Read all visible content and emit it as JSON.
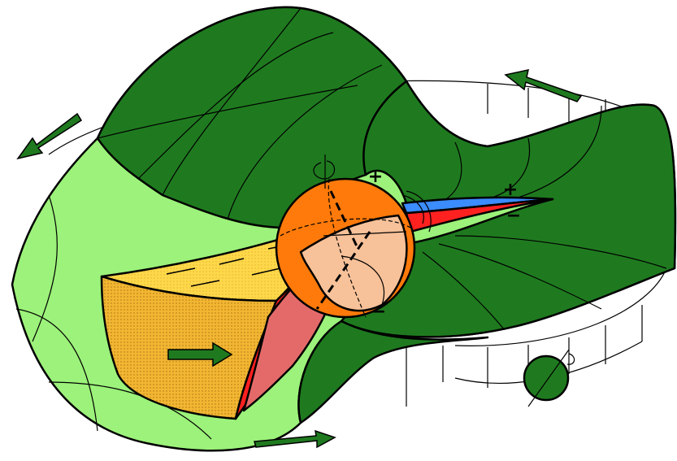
{
  "signs": {
    "sphere_top": "+",
    "sheet_top": "+",
    "sheet_bottom": "−",
    "sphere_bottom": "−"
  }
}
